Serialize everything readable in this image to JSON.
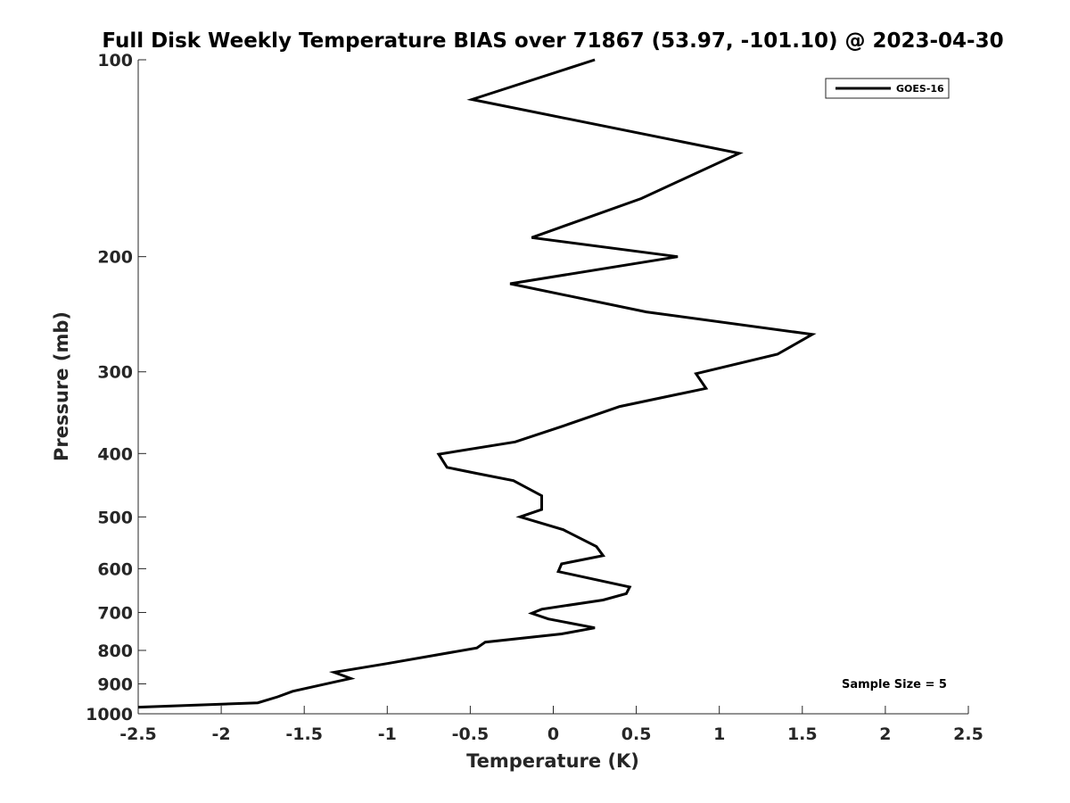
{
  "chart_data": {
    "type": "line",
    "title": "Full Disk Weekly Temperature BIAS over 71867 (53.97, -101.10) @ 2023-04-30",
    "xlabel": "Temperature (K)",
    "ylabel": "Pressure (mb)",
    "xlim": [
      -2.5,
      2.5
    ],
    "ylim": [
      1000,
      100
    ],
    "y_scale": "log",
    "y_reversed": true,
    "x_ticks": [
      "-2.5",
      "-2",
      "-1.5",
      "-1",
      "-0.5",
      "0",
      "0.5",
      "1",
      "1.5",
      "2",
      "2.5"
    ],
    "y_ticks": [
      "100",
      "200",
      "300",
      "400",
      "500",
      "600",
      "700",
      "800",
      "900",
      "1000"
    ],
    "grid": false,
    "legend_position": "top-right",
    "series": [
      {
        "name": "GOES-16",
        "color": "#000000",
        "points": [
          {
            "x": 0.25,
            "y": 100
          },
          {
            "x": -0.49,
            "y": 115
          },
          {
            "x": 1.12,
            "y": 139
          },
          {
            "x": 0.53,
            "y": 163
          },
          {
            "x": -0.13,
            "y": 187
          },
          {
            "x": 0.75,
            "y": 200
          },
          {
            "x": -0.26,
            "y": 220
          },
          {
            "x": 0.56,
            "y": 243
          },
          {
            "x": 1.56,
            "y": 263
          },
          {
            "x": 1.35,
            "y": 282
          },
          {
            "x": 0.86,
            "y": 302
          },
          {
            "x": 0.92,
            "y": 318
          },
          {
            "x": 0.4,
            "y": 339
          },
          {
            "x": 0.06,
            "y": 363
          },
          {
            "x": -0.23,
            "y": 384
          },
          {
            "x": -0.69,
            "y": 401
          },
          {
            "x": -0.64,
            "y": 420
          },
          {
            "x": -0.46,
            "y": 429
          },
          {
            "x": -0.24,
            "y": 440
          },
          {
            "x": -0.07,
            "y": 464
          },
          {
            "x": -0.07,
            "y": 487
          },
          {
            "x": -0.2,
            "y": 500
          },
          {
            "x": 0.06,
            "y": 523
          },
          {
            "x": 0.26,
            "y": 555
          },
          {
            "x": 0.3,
            "y": 573
          },
          {
            "x": 0.05,
            "y": 590
          },
          {
            "x": 0.03,
            "y": 606
          },
          {
            "x": 0.46,
            "y": 640
          },
          {
            "x": 0.44,
            "y": 655
          },
          {
            "x": 0.3,
            "y": 670
          },
          {
            "x": -0.07,
            "y": 692
          },
          {
            "x": -0.13,
            "y": 702
          },
          {
            "x": -0.03,
            "y": 716
          },
          {
            "x": 0.25,
            "y": 739
          },
          {
            "x": 0.05,
            "y": 755
          },
          {
            "x": -0.41,
            "y": 777
          },
          {
            "x": -0.46,
            "y": 793
          },
          {
            "x": -1.0,
            "y": 838
          },
          {
            "x": -1.32,
            "y": 864
          },
          {
            "x": -1.22,
            "y": 883
          },
          {
            "x": -1.57,
            "y": 924
          },
          {
            "x": -1.66,
            "y": 942
          },
          {
            "x": -1.78,
            "y": 962
          },
          {
            "x": -2.5,
            "y": 977
          }
        ]
      }
    ],
    "annotation": "Sample Size = 5"
  }
}
